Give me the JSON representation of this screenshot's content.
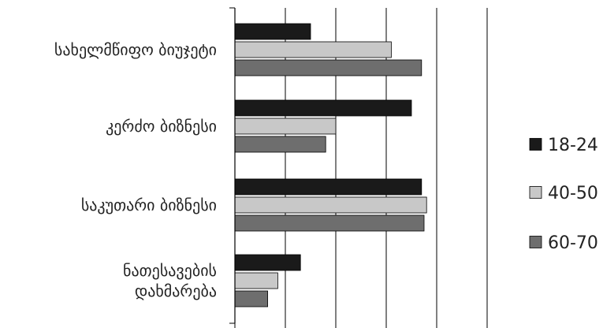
{
  "chart_data": {
    "type": "bar",
    "orientation": "horizontal",
    "title": "",
    "xlabel": "",
    "ylabel": "",
    "xlim": [
      0,
      50
    ],
    "x_tick_step": 10,
    "x_tick_labels_shown": false,
    "grid": "vertical",
    "legend_position": "right",
    "categories": [
      [
        "სახელმწიფო ბიუჯეტი"
      ],
      [
        "კერძო ბიზნესი"
      ],
      [
        "საკუთარი ბიზნესი"
      ],
      [
        "ნათესავების",
        "დახმარება"
      ]
    ],
    "series": [
      {
        "name": "18-24",
        "color": "#1a1a1a",
        "values": [
          15,
          35,
          37,
          13
        ]
      },
      {
        "name": "40-50",
        "color": "#c8c8c8",
        "values": [
          31,
          20,
          38,
          8.5
        ]
      },
      {
        "name": "60-70",
        "color": "#6e6e6e",
        "values": [
          37,
          18,
          37.5,
          6.5
        ]
      }
    ]
  }
}
